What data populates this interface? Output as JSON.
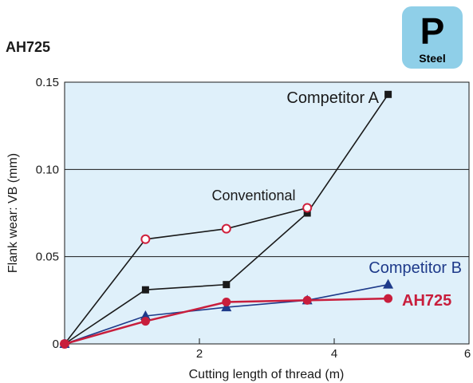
{
  "header": {
    "title": "AH725"
  },
  "badge": {
    "letter": "P",
    "label": "Steel",
    "color": "#8fcfe8"
  },
  "chart_data": {
    "type": "line",
    "title": "",
    "xlabel": "Cutting length of thread (m)",
    "ylabel": "Flank wear: VB (mm)",
    "xlim": [
      0,
      6
    ],
    "ylim": [
      0,
      0.15
    ],
    "x_ticks": [
      2,
      4,
      6
    ],
    "x_tick_labels": [
      "2",
      "4",
      "6"
    ],
    "y_ticks": [
      0,
      0.05,
      0.1,
      0.15
    ],
    "y_tick_labels": [
      "0",
      "0.05",
      "0.10",
      "0.15"
    ],
    "grid": "horizontal",
    "plot_background": "#dff0fa",
    "series": [
      {
        "name": "Competitor A",
        "color": "#1a1a1a",
        "marker": "square",
        "x": [
          0,
          1.2,
          2.4,
          3.6,
          4.8
        ],
        "y": [
          0,
          0.031,
          0.034,
          0.075,
          0.143
        ]
      },
      {
        "name": "Conventional",
        "color": "#1a1a1a",
        "marker": "open-circle",
        "marker_color": "#d0203c",
        "x": [
          0,
          1.2,
          2.4,
          3.6
        ],
        "y": [
          0,
          0.06,
          0.066,
          0.078
        ]
      },
      {
        "name": "Competitor B",
        "color": "#1e3a8a",
        "marker": "triangle",
        "x": [
          0,
          1.2,
          2.4,
          3.6,
          4.8
        ],
        "y": [
          0,
          0.016,
          0.021,
          0.025,
          0.034
        ]
      },
      {
        "name": "AH725",
        "color": "#c81e3c",
        "marker": "circle",
        "x": [
          0,
          1.2,
          2.4,
          3.6,
          4.8
        ],
        "y": [
          0,
          0.013,
          0.024,
          0.025,
          0.026
        ]
      }
    ]
  }
}
